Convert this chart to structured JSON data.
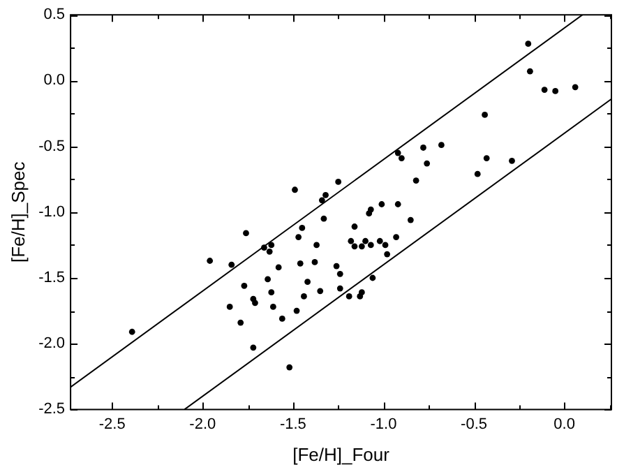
{
  "chart_data": {
    "type": "scatter",
    "xlabel": "[Fe/H]_Four",
    "ylabel": "[Fe/H]_Spec",
    "xlim": [
      -2.73,
      0.26
    ],
    "ylim": [
      -2.5,
      0.5
    ],
    "xticks": [
      -2.5,
      {
        "value": -2.25,
        "label": null
      },
      {
        "value": -2.0,
        "label": "-2.0"
      },
      {
        "value": -1.75,
        "label": null
      },
      -1.5,
      {
        "value": -1.25,
        "label": null
      },
      {
        "value": -1.0,
        "label": "-1.0"
      },
      {
        "value": -0.75,
        "label": null
      },
      -0.5,
      {
        "value": -0.25,
        "label": null
      },
      {
        "value": 0.0,
        "label": "0.0"
      },
      {
        "value": 0.25,
        "label": null
      }
    ],
    "yticks": [
      -2.5,
      {
        "value": -2.25,
        "label": null
      },
      {
        "value": -2.0,
        "label": "-2.0"
      },
      {
        "value": -1.75,
        "label": null
      },
      -1.5,
      {
        "value": -1.25,
        "label": null
      },
      {
        "value": -1.0,
        "label": "-1.0"
      },
      {
        "value": -0.75,
        "label": null
      },
      -0.5,
      {
        "value": -0.25,
        "label": null
      },
      {
        "value": 0.0,
        "label": "0.0"
      },
      {
        "value": 0.25,
        "label": null
      },
      0.5
    ],
    "grid": false,
    "marker": "circle",
    "series": [
      {
        "type": "scatter",
        "color": "#000000",
        "x": [
          -2.39,
          -1.96,
          -1.85,
          -1.84,
          -1.79,
          -1.77,
          -1.76,
          -1.72,
          -1.71,
          -1.72,
          -1.66,
          -1.64,
          -1.63,
          -1.62,
          -1.62,
          -1.61,
          -1.58,
          -1.56,
          -1.52,
          -1.49,
          -1.48,
          -1.47,
          -1.46,
          -1.45,
          -1.44,
          -1.42,
          -1.38,
          -1.37,
          -1.35,
          -1.34,
          -1.33,
          -1.32,
          -1.26,
          -1.25,
          -1.24,
          -1.24,
          -1.19,
          -1.18,
          -1.16,
          -1.16,
          -1.13,
          -1.12,
          -1.12,
          -1.1,
          -1.08,
          -1.07,
          -1.07,
          -1.06,
          -1.02,
          -1.01,
          -0.99,
          -0.98,
          -0.93,
          -0.92,
          -0.92,
          -0.9,
          -0.85,
          -0.82,
          -0.78,
          -0.76,
          -0.68,
          -0.48,
          -0.44,
          -0.43,
          -0.29,
          -0.2,
          -0.19,
          -0.11,
          -0.05,
          0.06
        ],
        "values": [
          -1.91,
          -1.37,
          -1.72,
          -1.4,
          -1.84,
          -1.56,
          -1.16,
          -1.66,
          -1.69,
          -2.03,
          -1.27,
          -1.51,
          -1.3,
          -1.25,
          -1.61,
          -1.72,
          -1.42,
          -1.81,
          -2.18,
          -0.83,
          -1.75,
          -1.19,
          -1.39,
          -1.12,
          -1.64,
          -1.53,
          -1.38,
          -1.25,
          -1.6,
          -0.91,
          -1.05,
          -0.87,
          -1.41,
          -0.77,
          -1.47,
          -1.58,
          -1.64,
          -1.22,
          -1.11,
          -1.26,
          -1.64,
          -1.61,
          -1.26,
          -1.22,
          -1.01,
          -0.98,
          -1.25,
          -1.5,
          -1.22,
          -0.94,
          -1.25,
          -1.32,
          -1.19,
          -0.94,
          -0.55,
          -0.59,
          -1.06,
          -0.76,
          -0.51,
          -0.63,
          -0.49,
          -0.71,
          -0.26,
          -0.59,
          -0.61,
          0.28,
          0.07,
          -0.07,
          -0.08,
          -0.05
        ]
      },
      {
        "type": "line",
        "color": "#000000",
        "marker": "none",
        "line_style": "solid",
        "x": [
          -2.73,
          0.1
        ],
        "values": [
          -2.33,
          0.5
        ]
      },
      {
        "type": "line",
        "color": "#000000",
        "marker": "none",
        "line_style": "solid",
        "x": [
          -2.1,
          0.26
        ],
        "values": [
          -2.5,
          -0.14
        ]
      }
    ]
  }
}
